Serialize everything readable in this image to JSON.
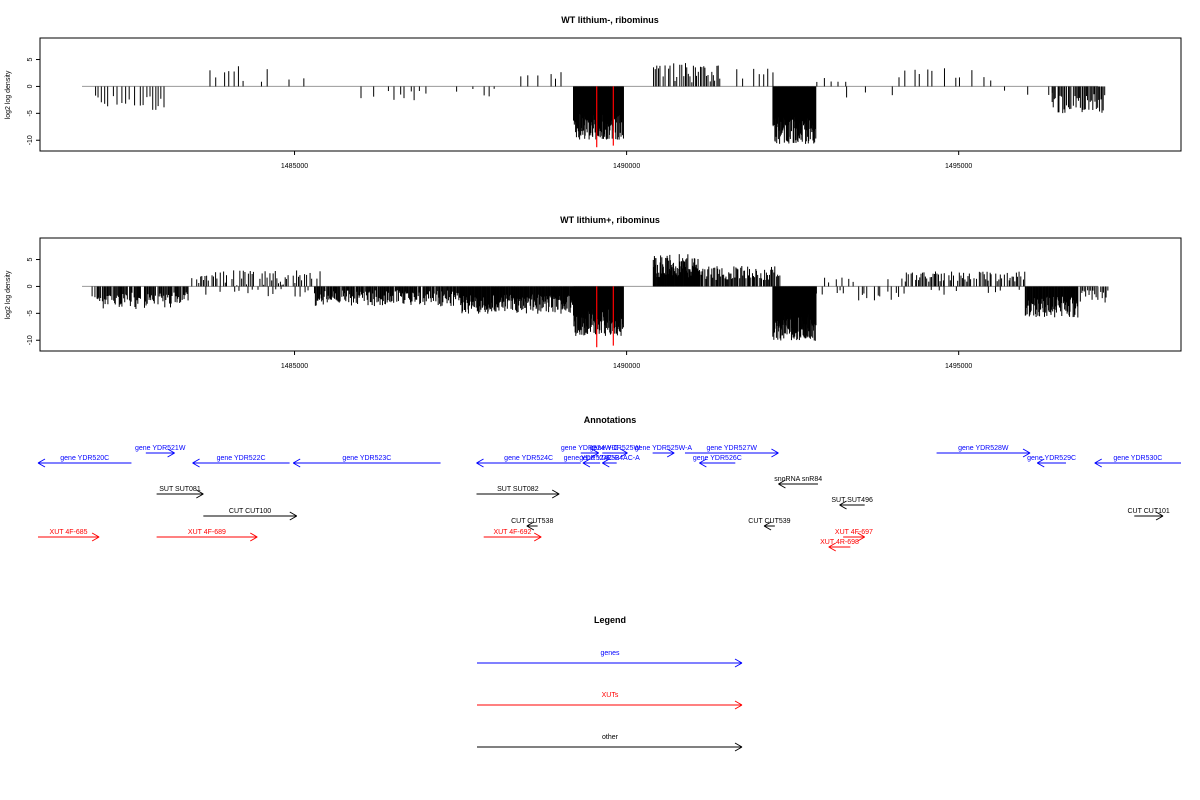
{
  "colors": {
    "genes": "#0000ff",
    "xuts": "#ff0000",
    "other": "#000000",
    "axis": "#000000",
    "zero_line": "#999999"
  },
  "chart_data": [
    {
      "type": "bar",
      "title": "WT lithium-, ribominus",
      "ylabel": "log2 log density",
      "xlim": [
        1481800,
        1497700
      ],
      "ylim": [
        -12,
        9
      ],
      "yticks": [
        -10,
        -5,
        0,
        5
      ],
      "xticks": [
        1485000,
        1490000,
        1495000
      ],
      "xtick_labels": [
        "1485000",
        "1490000",
        "1495000"
      ],
      "highlight_color": "#ff0000",
      "highlights": [
        [
          1489550,
          -11.3
        ],
        [
          1489800,
          -11.0
        ]
      ],
      "segments": [
        {
          "range": [
            1481950,
            1483100
          ],
          "step": 45,
          "base": -2.8,
          "amp": 1.6,
          "dens": 0.85
        },
        {
          "range": [
            1483650,
            1484600
          ],
          "step": 70,
          "base": 2.3,
          "amp": 1.6,
          "dens": 0.5
        },
        {
          "range": [
            1484900,
            1485400
          ],
          "step": 120,
          "base": 1.8,
          "amp": 0.6,
          "dens": 0.5
        },
        {
          "range": [
            1486000,
            1488200
          ],
          "step": 80,
          "base": -1.6,
          "amp": 1.2,
          "dens": 0.4
        },
        {
          "range": [
            1488200,
            1489200
          ],
          "step": 90,
          "base": 1.5,
          "amp": 1.2,
          "dens": 0.5
        },
        {
          "range": [
            1489200,
            1489950
          ],
          "step": 6,
          "base": -7.5,
          "amp": 2.4,
          "dens": 1.0
        },
        {
          "range": [
            1490400,
            1491400
          ],
          "step": 25,
          "base": 2.6,
          "amp": 2.0,
          "dens": 0.9
        },
        {
          "range": [
            1491400,
            1492300
          ],
          "step": 80,
          "base": 2.4,
          "amp": 1.0,
          "dens": 0.6
        },
        {
          "range": [
            1492200,
            1492850
          ],
          "step": 6,
          "base": -8.2,
          "amp": 2.5,
          "dens": 1.0
        },
        {
          "range": [
            1492850,
            1493300
          ],
          "step": 110,
          "base": 1.2,
          "amp": 0.6,
          "dens": 0.5
        },
        {
          "range": [
            1493300,
            1494100
          ],
          "step": 140,
          "base": -1.6,
          "amp": 0.8,
          "dens": 0.4
        },
        {
          "range": [
            1494100,
            1495600
          ],
          "step": 60,
          "base": 2.1,
          "amp": 1.4,
          "dens": 0.6
        },
        {
          "range": [
            1495600,
            1496400
          ],
          "step": 80,
          "base": -1.4,
          "amp": 0.8,
          "dens": 0.4
        },
        {
          "range": [
            1496400,
            1497200
          ],
          "step": 18,
          "base": -3.2,
          "amp": 1.8,
          "dens": 0.95
        }
      ]
    },
    {
      "type": "bar",
      "title": "WT lithium+, ribominus",
      "ylabel": "log2 log density",
      "xlim": [
        1481800,
        1497700
      ],
      "ylim": [
        -12,
        9
      ],
      "yticks": [
        -10,
        -5,
        0,
        5
      ],
      "xticks": [
        1485000,
        1490000,
        1495000
      ],
      "xtick_labels": [
        "1485000",
        "1490000",
        "1495000"
      ],
      "highlight_color": "#ff0000",
      "highlights": [
        [
          1489550,
          -11.3
        ],
        [
          1489800,
          -11.0
        ]
      ],
      "segments": [
        {
          "range": [
            1481950,
            1483400
          ],
          "step": 14,
          "base": -2.6,
          "amp": 1.6,
          "dens": 0.9
        },
        {
          "range": [
            1483450,
            1485400
          ],
          "step": 25,
          "base": 1.6,
          "amp": 1.4,
          "dens": 0.75
        },
        {
          "range": [
            1483450,
            1485400
          ],
          "step": 70,
          "base": -1.2,
          "amp": 0.7,
          "dens": 0.5
        },
        {
          "range": [
            1485300,
            1487500
          ],
          "step": 12,
          "base": -2.2,
          "amp": 1.5,
          "dens": 0.95
        },
        {
          "range": [
            1487500,
            1489200
          ],
          "step": 9,
          "base": -3.3,
          "amp": 1.8,
          "dens": 1.0
        },
        {
          "range": [
            1489200,
            1489950
          ],
          "step": 5,
          "base": -6.6,
          "amp": 2.6,
          "dens": 1.0
        },
        {
          "range": [
            1490400,
            1491100
          ],
          "step": 8,
          "base": 3.8,
          "amp": 2.2,
          "dens": 1.0
        },
        {
          "range": [
            1491100,
            1492300
          ],
          "step": 15,
          "base": 2.5,
          "amp": 1.3,
          "dens": 0.95
        },
        {
          "range": [
            1492200,
            1492850
          ],
          "step": 5,
          "base": -7.6,
          "amp": 2.5,
          "dens": 1.0
        },
        {
          "range": [
            1492850,
            1494100
          ],
          "step": 40,
          "base": -1.6,
          "amp": 1.0,
          "dens": 0.6
        },
        {
          "range": [
            1492850,
            1494100
          ],
          "step": 90,
          "base": 1.2,
          "amp": 0.6,
          "dens": 0.4
        },
        {
          "range": [
            1494100,
            1496000
          ],
          "step": 22,
          "base": 1.8,
          "amp": 1.0,
          "dens": 0.8
        },
        {
          "range": [
            1494100,
            1496000
          ],
          "step": 60,
          "base": -1.2,
          "amp": 0.6,
          "dens": 0.4
        },
        {
          "range": [
            1496000,
            1496800
          ],
          "step": 9,
          "base": -3.8,
          "amp": 2.0,
          "dens": 1.0
        },
        {
          "range": [
            1496800,
            1497250
          ],
          "step": 22,
          "base": -1.9,
          "amp": 1.2,
          "dens": 0.9
        }
      ]
    }
  ],
  "annotations": {
    "title": "Annotations",
    "xlim": [
      1481800,
      1497700
    ],
    "features": [
      {
        "label": "gene YDR520C",
        "type": "genes",
        "strand": "-",
        "start": 1481800,
        "end": 1483100,
        "row": 1
      },
      {
        "label": "gene YDR521W",
        "type": "genes",
        "strand": "+",
        "start": 1483300,
        "end": 1483700,
        "row": 0
      },
      {
        "label": "gene YDR522C",
        "type": "genes",
        "strand": "-",
        "start": 1483950,
        "end": 1485300,
        "row": 1
      },
      {
        "label": "gene YDR523C",
        "type": "genes",
        "strand": "-",
        "start": 1485350,
        "end": 1487400,
        "row": 1
      },
      {
        "label": "gene YDR524C",
        "type": "genes",
        "strand": "-",
        "start": 1487900,
        "end": 1489350,
        "row": 1
      },
      {
        "label": "gene YDR524W-C",
        "type": "genes",
        "strand": "+",
        "start": 1489350,
        "end": 1489600,
        "row": 0
      },
      {
        "label": "gene YDR525W",
        "type": "genes",
        "strand": "+",
        "start": 1489650,
        "end": 1490000,
        "row": 0
      },
      {
        "label": "gene YDR525W-A",
        "type": "genes",
        "strand": "+",
        "start": 1490350,
        "end": 1490650,
        "row": 0
      },
      {
        "label": "gene YDR524C-B",
        "type": "genes",
        "strand": "-",
        "start": 1489380,
        "end": 1489620,
        "row": 1
      },
      {
        "label": "gene YDR524AC-A",
        "type": "genes",
        "strand": "-",
        "start": 1489650,
        "end": 1489850,
        "row": 1
      },
      {
        "label": "gene YDR526C",
        "type": "genes",
        "strand": "-",
        "start": 1491000,
        "end": 1491500,
        "row": 1
      },
      {
        "label": "gene YDR527W",
        "type": "genes",
        "strand": "+",
        "start": 1490800,
        "end": 1492100,
        "row": 0
      },
      {
        "label": "gene YDR528W",
        "type": "genes",
        "strand": "+",
        "start": 1494300,
        "end": 1495600,
        "row": 0
      },
      {
        "label": "gene YDR529C",
        "type": "genes",
        "strand": "-",
        "start": 1495700,
        "end": 1496100,
        "row": 1
      },
      {
        "label": "gene YDR530C",
        "type": "genes",
        "strand": "-",
        "start": 1496500,
        "end": 1497700,
        "row": 1
      },
      {
        "label": "snoRNA snR84",
        "type": "other",
        "strand": "-",
        "start": 1492100,
        "end": 1492650,
        "row": 2
      },
      {
        "label": "SUT SUT081",
        "type": "other",
        "strand": "+",
        "start": 1483450,
        "end": 1484100,
        "row": 3
      },
      {
        "label": "SUT SUT082",
        "type": "other",
        "strand": "+",
        "start": 1487900,
        "end": 1489050,
        "row": 3
      },
      {
        "label": "SUT SUT496",
        "type": "other",
        "strand": "-",
        "start": 1492950,
        "end": 1493300,
        "row": 4
      },
      {
        "label": "CUT CUT100",
        "type": "other",
        "strand": "+",
        "start": 1484100,
        "end": 1485400,
        "row": 5
      },
      {
        "label": "CUT CUT101",
        "type": "other",
        "strand": "+",
        "start": 1497050,
        "end": 1497450,
        "row": 5
      },
      {
        "label": "CUT CUT538",
        "type": "other",
        "strand": "-",
        "start": 1488600,
        "end": 1488750,
        "row": 6
      },
      {
        "label": "CUT CUT539",
        "type": "other",
        "strand": "-",
        "start": 1491900,
        "end": 1492050,
        "row": 6
      },
      {
        "label": "XUT 4F-685",
        "type": "xuts",
        "strand": "+",
        "start": 1481800,
        "end": 1482650,
        "row": 7
      },
      {
        "label": "XUT 4F-689",
        "type": "xuts",
        "strand": "+",
        "start": 1483450,
        "end": 1484850,
        "row": 7
      },
      {
        "label": "XUT 4F-692",
        "type": "xuts",
        "strand": "+",
        "start": 1488000,
        "end": 1488800,
        "row": 7
      },
      {
        "label": "XUT 4F-697",
        "type": "xuts",
        "strand": "+",
        "start": 1493000,
        "end": 1493300,
        "row": 7
      },
      {
        "label": "XUT 4R-698",
        "type": "xuts",
        "strand": "-",
        "start": 1492800,
        "end": 1493100,
        "row": 8
      }
    ]
  },
  "legend": {
    "title": "Legend",
    "items": [
      {
        "label": "genes",
        "type": "genes"
      },
      {
        "label": "XUTs",
        "type": "xuts"
      },
      {
        "label": "other",
        "type": "other"
      }
    ]
  }
}
